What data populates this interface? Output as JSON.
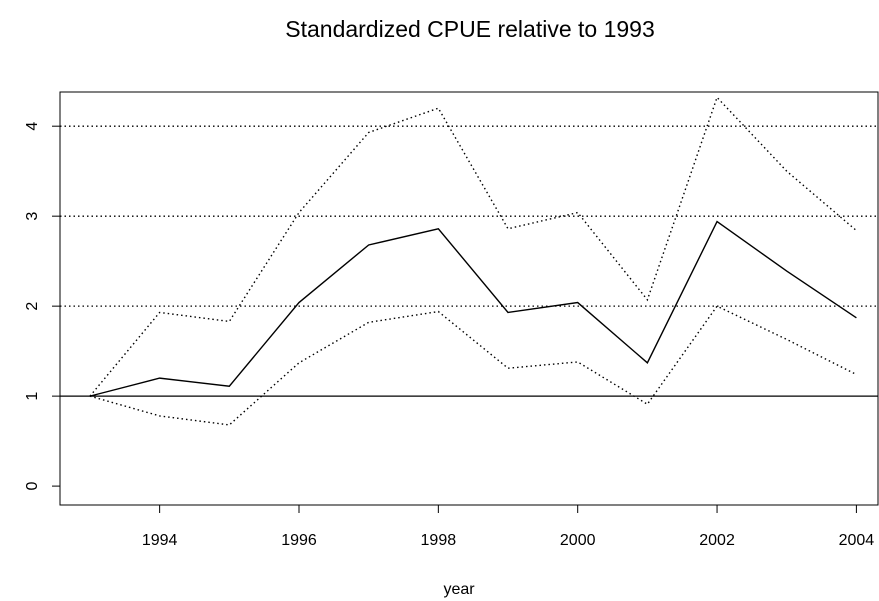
{
  "chart_data": {
    "type": "line",
    "title": "Standardized CPUE relative to 1993",
    "x_label": "year",
    "x": [
      1993,
      1994,
      1995,
      1996,
      1997,
      1998,
      1999,
      2000,
      2001,
      2002,
      2003,
      2004
    ],
    "series": [
      {
        "color": "#000000",
        "dash": "solid",
        "values": [
          1,
          1.2,
          1.11,
          2.04,
          2.68,
          2.86,
          1.93,
          2.04,
          1.37,
          2.94,
          2.39,
          1.87
        ]
      },
      {
        "color": "#000000",
        "dash": "dotted",
        "values": [
          1,
          1.93,
          1.83,
          3.04,
          3.93,
          4.2,
          2.86,
          3.04,
          2.07,
          4.32,
          3.5,
          2.84
        ]
      },
      {
        "color": "#000000",
        "dash": "dotted",
        "values": [
          1,
          0.78,
          0.68,
          1.37,
          1.82,
          1.94,
          1.31,
          1.38,
          0.91,
          2.0,
          1.63,
          1.24
        ]
      }
    ],
    "xlim": [
      1992.57,
      2004.31
    ],
    "ylim": [
      -0.21,
      4.38
    ],
    "xticks": [
      1994,
      1996,
      1998,
      2000,
      2002,
      2004
    ],
    "yticks": [
      0,
      1,
      2,
      3,
      4
    ],
    "hlines": [
      1,
      2,
      3,
      4
    ],
    "hline_styles": [
      "solid",
      "dotted",
      "dotted",
      "dotted"
    ]
  }
}
